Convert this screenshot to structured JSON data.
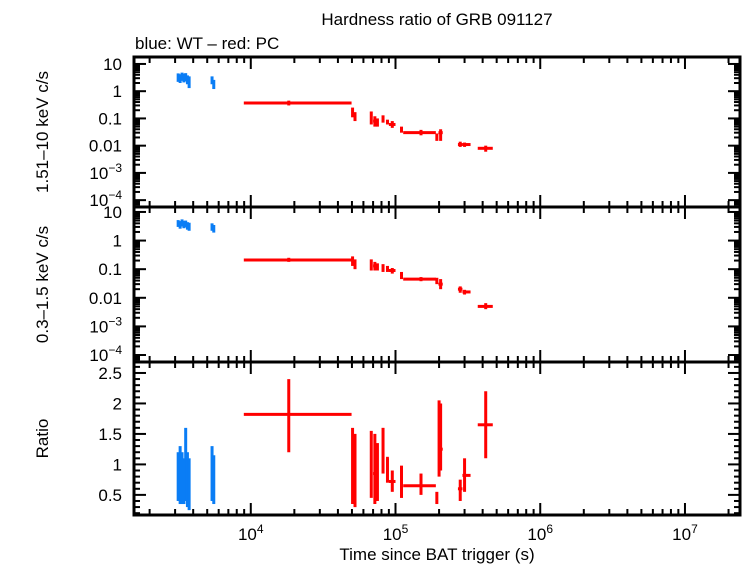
{
  "chart_data": [
    {
      "type": "scatter",
      "title": "Hardness ratio of GRB 091127",
      "subtitle": "blue: WT – red: PC",
      "xlabel": "Time since BAT trigger (s)",
      "xscale": "log",
      "xlim": [
        1560,
        24000000
      ],
      "xticks": [
        {
          "v": 10000,
          "base": "10",
          "exp": "4"
        },
        {
          "v": 100000,
          "base": "10",
          "exp": "5"
        },
        {
          "v": 1000000,
          "base": "10",
          "exp": "6"
        },
        {
          "v": 10000000,
          "base": "10",
          "exp": "7"
        }
      ],
      "colors": {
        "WT": "#0a7df5",
        "PC": "#ff0000"
      },
      "panels": [
        {
          "ylabel": "1.51–10 keV c/s",
          "yscale": "log",
          "ylim": [
            5.6e-05,
            18
          ],
          "yticks": [
            {
              "v": 10,
              "base": "10"
            },
            {
              "v": 1,
              "base": "1"
            },
            {
              "v": 0.1,
              "base": "0.1"
            },
            {
              "v": 0.01,
              "base": "0.01"
            },
            {
              "v": 0.001,
              "base": "10",
              "exp": "−3"
            },
            {
              "v": 0.0001,
              "base": "10",
              "exp": "−4"
            }
          ],
          "series": [
            {
              "mode": "WT",
              "points": [
                [
                  3150,
                  3100,
                  3200,
                  3.2,
                  2.2,
                  4.5
                ],
                [
                  3250,
                  3200,
                  3300,
                  2.8,
                  2.0,
                  4.2
                ],
                [
                  3350,
                  3300,
                  3400,
                  3.5,
                  2.4,
                  4.8
                ],
                [
                  3450,
                  3400,
                  3500,
                  3.0,
                  2.1,
                  4.4
                ],
                [
                  3550,
                  3500,
                  3600,
                  3.3,
                  2.3,
                  4.6
                ],
                [
                  3650,
                  3600,
                  3700,
                  2.6,
                  1.8,
                  3.8
                ],
                [
                  3750,
                  3700,
                  3800,
                  2.4,
                  1.3,
                  3.5
                ],
                [
                  5400,
                  5350,
                  5450,
                  2.5,
                  1.8,
                  3.5
                ],
                [
                  5550,
                  5500,
                  5600,
                  1.8,
                  1.2,
                  2.6
                ]
              ]
            },
            {
              "mode": "PC",
              "points": [
                [
                  18300,
                  8950,
                  49700,
                  0.37,
                  0.3,
                  0.45
                ],
                [
                  50500,
                  50000,
                  51000,
                  0.17,
                  0.11,
                  0.25
                ],
                [
                  52500,
                  52000,
                  53000,
                  0.12,
                  0.08,
                  0.17
                ],
                [
                  68000,
                  67000,
                  69000,
                  0.12,
                  0.06,
                  0.18
                ],
                [
                  72000,
                  70000,
                  74000,
                  0.08,
                  0.05,
                  0.12
                ],
                [
                  75000,
                  74000,
                  76000,
                  0.07,
                  0.05,
                  0.1
                ],
                [
                  82000,
                  81000,
                  83000,
                  0.1,
                  0.07,
                  0.13
                ],
                [
                  88000,
                  86000,
                  90000,
                  0.07,
                  0.06,
                  0.09
                ],
                [
                  95000,
                  90000,
                  100000,
                  0.06,
                  0.045,
                  0.08
                ],
                [
                  110000,
                  109000,
                  111000,
                  0.04,
                  0.03,
                  0.05
                ],
                [
                  150000,
                  113000,
                  190000,
                  0.03,
                  0.024,
                  0.038
                ],
                [
                  193000,
                  190000,
                  196000,
                  0.02,
                  0.015,
                  0.028
                ],
                [
                  205000,
                  198000,
                  212000,
                  0.03,
                  0.015,
                  0.04
                ],
                [
                  280000,
                  270000,
                  290000,
                  0.011,
                  0.009,
                  0.014
                ],
                [
                  300000,
                  290000,
                  330000,
                  0.011,
                  0.009,
                  0.013
                ],
                [
                  420000,
                  370000,
                  470000,
                  0.008,
                  0.006,
                  0.01
                ]
              ]
            }
          ]
        },
        {
          "ylabel": "0.3–1.5 keV c/s",
          "yscale": "log",
          "ylim": [
            5.7e-05,
            14.9
          ],
          "yticks": [
            {
              "v": 10,
              "base": "10"
            },
            {
              "v": 1,
              "base": "1"
            },
            {
              "v": 0.1,
              "base": "0.1"
            },
            {
              "v": 0.01,
              "base": "0.01"
            },
            {
              "v": 0.001,
              "base": "10",
              "exp": "−3"
            },
            {
              "v": 0.0001,
              "base": "10",
              "exp": "−4"
            }
          ],
          "series": [
            {
              "mode": "WT",
              "points": [
                [
                  3150,
                  3100,
                  3200,
                  4.0,
                  3.0,
                  5.2
                ],
                [
                  3250,
                  3200,
                  3300,
                  3.5,
                  2.6,
                  4.8
                ],
                [
                  3350,
                  3300,
                  3400,
                  4.2,
                  3.1,
                  5.5
                ],
                [
                  3450,
                  3400,
                  3500,
                  3.6,
                  2.7,
                  4.9
                ],
                [
                  3550,
                  3500,
                  3600,
                  3.8,
                  2.9,
                  5.0
                ],
                [
                  3650,
                  3600,
                  3700,
                  3.2,
                  2.4,
                  4.4
                ],
                [
                  3750,
                  3700,
                  3800,
                  3.0,
                  2.2,
                  4.2
                ],
                [
                  5400,
                  5350,
                  5450,
                  3.0,
                  2.2,
                  4.0
                ],
                [
                  5550,
                  5500,
                  5600,
                  2.6,
                  1.9,
                  3.5
                ]
              ]
            },
            {
              "mode": "PC",
              "points": [
                [
                  18300,
                  8950,
                  49700,
                  0.21,
                  0.18,
                  0.25
                ],
                [
                  50500,
                  50000,
                  51000,
                  0.2,
                  0.13,
                  0.28
                ],
                [
                  52500,
                  52000,
                  53000,
                  0.15,
                  0.1,
                  0.22
                ],
                [
                  68000,
                  67000,
                  69000,
                  0.15,
                  0.09,
                  0.22
                ],
                [
                  72000,
                  70000,
                  74000,
                  0.13,
                  0.09,
                  0.18
                ],
                [
                  75000,
                  74000,
                  76000,
                  0.12,
                  0.09,
                  0.16
                ],
                [
                  82000,
                  81000,
                  83000,
                  0.11,
                  0.08,
                  0.15
                ],
                [
                  88000,
                  86000,
                  90000,
                  0.1,
                  0.08,
                  0.13
                ],
                [
                  95000,
                  90000,
                  100000,
                  0.09,
                  0.07,
                  0.11
                ],
                [
                  110000,
                  109000,
                  111000,
                  0.06,
                  0.045,
                  0.08
                ],
                [
                  150000,
                  113000,
                  190000,
                  0.045,
                  0.038,
                  0.053
                ],
                [
                  193000,
                  190000,
                  196000,
                  0.04,
                  0.03,
                  0.05
                ],
                [
                  205000,
                  198000,
                  212000,
                  0.03,
                  0.02,
                  0.045
                ],
                [
                  280000,
                  270000,
                  290000,
                  0.02,
                  0.015,
                  0.025
                ],
                [
                  300000,
                  290000,
                  330000,
                  0.016,
                  0.013,
                  0.019
                ],
                [
                  420000,
                  370000,
                  470000,
                  0.005,
                  0.004,
                  0.0065
                ]
              ]
            }
          ]
        },
        {
          "ylabel": "Ratio",
          "yscale": "linear",
          "ylim": [
            0.17,
            2.68
          ],
          "yticks": [
            {
              "v": 2.5,
              "base": "2.5"
            },
            {
              "v": 2,
              "base": "2"
            },
            {
              "v": 1.5,
              "base": "1.5"
            },
            {
              "v": 1,
              "base": "1"
            },
            {
              "v": 0.5,
              "base": "0.5"
            }
          ],
          "series": [
            {
              "mode": "WT",
              "points": [
                [
                  3150,
                  3100,
                  3200,
                  0.8,
                  0.4,
                  1.2
                ],
                [
                  3250,
                  3200,
                  3300,
                  0.85,
                  0.35,
                  1.3
                ],
                [
                  3350,
                  3300,
                  3400,
                  0.75,
                  0.35,
                  1.2
                ],
                [
                  3450,
                  3400,
                  3500,
                  0.7,
                  0.35,
                  1.1
                ],
                [
                  3550,
                  3500,
                  3600,
                  0.9,
                  0.4,
                  1.6
                ],
                [
                  3650,
                  3600,
                  3700,
                  0.75,
                  0.3,
                  1.2
                ],
                [
                  3750,
                  3700,
                  3800,
                  0.7,
                  0.25,
                  1.1
                ],
                [
                  5400,
                  5350,
                  5450,
                  0.85,
                  0.4,
                  1.3
                ],
                [
                  5550,
                  5500,
                  5600,
                  0.75,
                  0.35,
                  1.15
                ]
              ]
            },
            {
              "mode": "PC",
              "points": [
                [
                  18300,
                  8950,
                  49700,
                  1.82,
                  1.2,
                  2.4
                ],
                [
                  50500,
                  50000,
                  51000,
                  0.9,
                  0.35,
                  1.6
                ],
                [
                  52500,
                  52000,
                  53000,
                  0.8,
                  0.3,
                  1.5
                ],
                [
                  68000,
                  67000,
                  69000,
                  1.0,
                  0.45,
                  1.55
                ],
                [
                  72000,
                  70000,
                  74000,
                  0.85,
                  0.35,
                  1.5
                ],
                [
                  75000,
                  74000,
                  76000,
                  0.9,
                  0.4,
                  1.35
                ],
                [
                  82000,
                  81000,
                  83000,
                  1.2,
                  0.85,
                  1.6
                ],
                [
                  88000,
                  86000,
                  90000,
                  1.1,
                  0.7,
                  1.1
                ],
                [
                  95000,
                  90000,
                  100000,
                  0.72,
                  0.55,
                  0.9
                ],
                [
                  110000,
                  109000,
                  111000,
                  0.7,
                  0.45,
                  0.98
                ],
                [
                  150000,
                  113000,
                  190000,
                  0.65,
                  0.5,
                  0.85
                ],
                [
                  193000,
                  190000,
                  196000,
                  0.5,
                  0.35,
                  0.55
                ],
                [
                  200000,
                  198000,
                  202000,
                  1.3,
                  0.8,
                  2.05
                ],
                [
                  205000,
                  202000,
                  212000,
                  1.25,
                  0.9,
                  2.0
                ],
                [
                  280000,
                  270000,
                  290000,
                  0.6,
                  0.4,
                  0.75
                ],
                [
                  300000,
                  290000,
                  330000,
                  0.82,
                  0.55,
                  1.1
                ],
                [
                  420000,
                  370000,
                  470000,
                  1.65,
                  1.1,
                  2.2
                ]
              ]
            }
          ]
        }
      ]
    }
  ]
}
